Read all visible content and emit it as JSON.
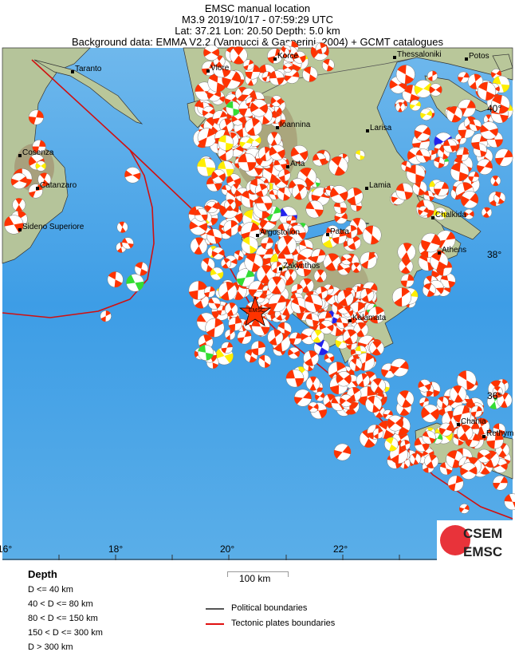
{
  "header": {
    "line1": "EMSC manual location",
    "line2": "M3.9  2019/10/17 - 07:59:29 UTC",
    "line3": "Lat: 37.21    Lon:  20.50     Depth:  5.0 km",
    "line4": "Background data: EMMA V2.2 (Vannucci & Gasperini, 2004) + GCMT catalogues"
  },
  "map": {
    "colors": {
      "sea": "#4aa3e6",
      "sea_deep": "#2f8fe0",
      "land": "#b9c79a",
      "mountain": "#a08f6a",
      "plate_boundary": "#d01010",
      "political": "#555555"
    },
    "beachball_colors": {
      "shallow": "#ff3300",
      "intermediate": "#ffee00",
      "deep": "#33dd33",
      "very_deep": "#2222ee"
    },
    "epicenter_label": "EMSC",
    "epicenter_icon": "star-icon",
    "cities": [
      "Taranto",
      "Vlore",
      "Korce",
      "Thessaloniki",
      "Potos",
      "Ioannina",
      "Larisa",
      "Cosenza",
      "Arta",
      "Lamia",
      "Catanzaro",
      "Chalkida",
      "Sideno Superiore",
      "Argostolion",
      "Patra",
      "Athens",
      "Zakynthos",
      "Kalamata",
      "Chania",
      "Rethym"
    ],
    "lon_labels": [
      "16°",
      "18°",
      "20°",
      "22°"
    ],
    "lat_labels": [
      "40°",
      "38°",
      "36°"
    ]
  },
  "logo": {
    "top": "CSEM",
    "bottom": "EMSC"
  },
  "legend": {
    "depth_title": "Depth",
    "depth_items": [
      "D <= 40 km",
      "40 < D <= 80 km",
      "80 < D <= 150 km",
      "150 < D <= 300 km",
      "D > 300 km"
    ],
    "scale_label": "100 km",
    "lines": [
      "Political boundaries",
      "Tectonic plates boundaries"
    ]
  }
}
